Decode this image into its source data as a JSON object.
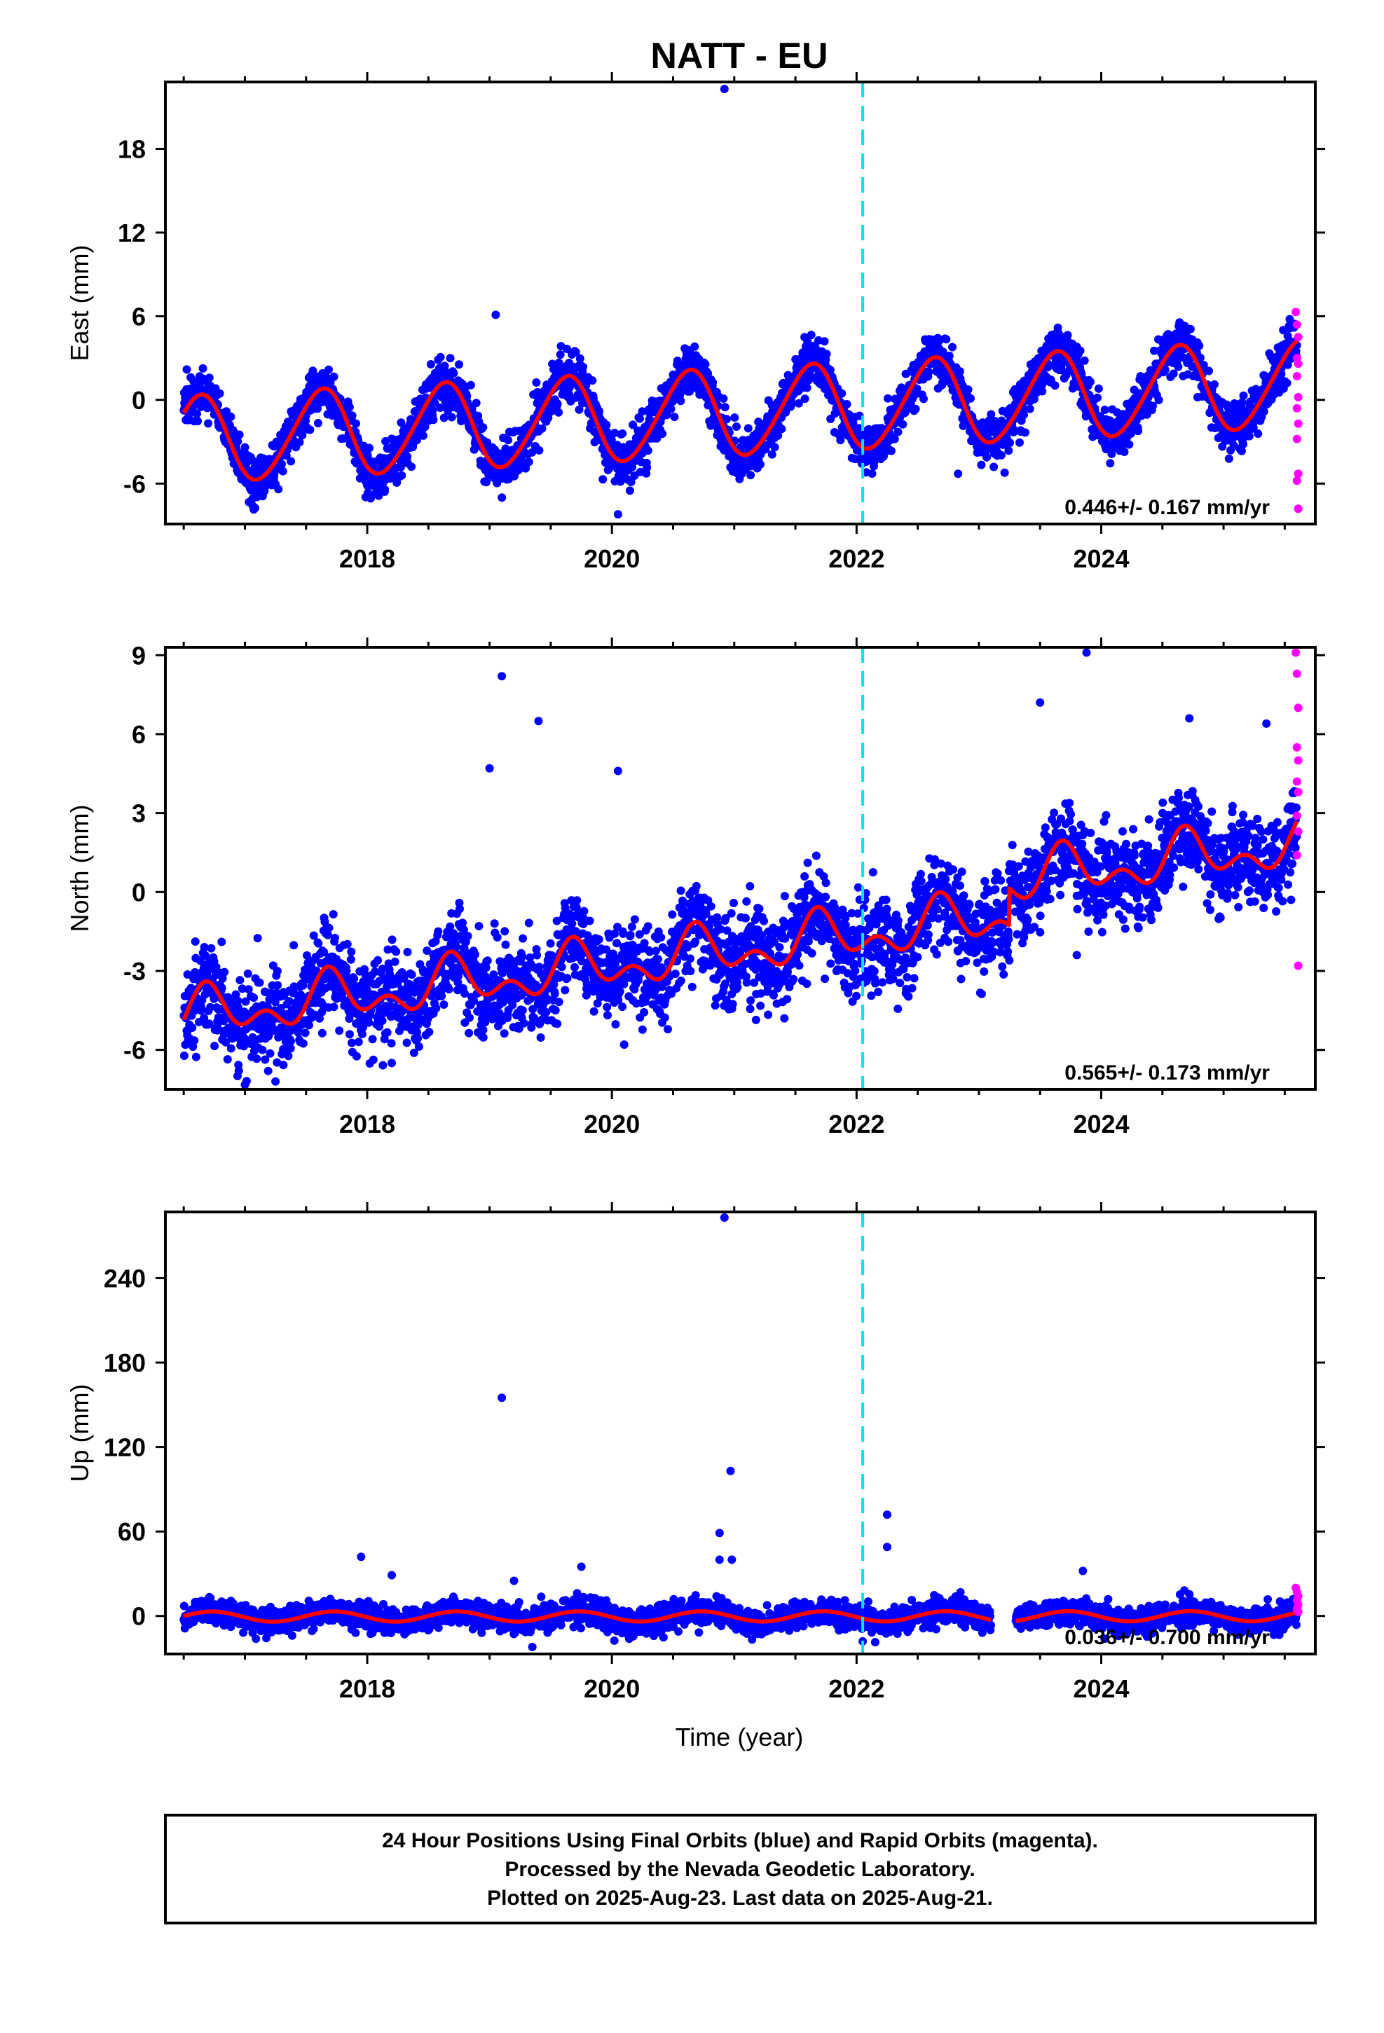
{
  "title": "NATT - EU",
  "x_axis_label": "Time (year)",
  "caption": [
    "24 Hour Positions Using Final Orbits (blue) and Rapid Orbits (magenta).",
    "Processed by the Nevada Geodetic Laboratory.",
    "Plotted on 2025-Aug-23. Last data on 2025-Aug-21."
  ],
  "colors": {
    "final": "#0000ff",
    "rapid": "#ff00ff",
    "model": "#ff0000",
    "event": "#00e5ee",
    "frame": "#000000"
  },
  "chart_data": [
    {
      "type": "scatter",
      "component": "east",
      "ylabel": "East (mm)",
      "xlim": [
        2016.35,
        2025.75
      ],
      "ylim": [
        -8.9,
        22.8
      ],
      "x_ticks": [
        2018,
        2020,
        2022,
        2024
      ],
      "y_ticks": [
        -6,
        0,
        6,
        12,
        18
      ],
      "rate_label": "0.446+/- 0.167 mm/yr",
      "event_line_year": 2022.05,
      "data_range": [
        2016.5,
        2025.6
      ],
      "model": {
        "offset": -0.9,
        "trend": 0.446,
        "annual_amp": 3.1,
        "annual_phase": 2017.37,
        "semiannual_amp": 0.3,
        "semiannual_phase": 2016.6
      },
      "scatter_sigma": 0.9,
      "outliers": [
        {
          "x": 2020.92,
          "y": 22.3
        },
        {
          "x": 2020.05,
          "y": -8.2
        },
        {
          "x": 2019.05,
          "y": 6.1
        },
        {
          "x": 2022.83,
          "y": -5.3
        }
      ],
      "rapid_points": [
        {
          "x": 2025.59,
          "y": 6.3
        },
        {
          "x": 2025.6,
          "y": 5.4
        },
        {
          "x": 2025.61,
          "y": 4.5
        },
        {
          "x": 2025.6,
          "y": 3.0
        },
        {
          "x": 2025.61,
          "y": 2.6
        },
        {
          "x": 2025.6,
          "y": 1.7
        },
        {
          "x": 2025.61,
          "y": 0.2
        },
        {
          "x": 2025.6,
          "y": -0.6
        },
        {
          "x": 2025.61,
          "y": -1.7
        },
        {
          "x": 2025.6,
          "y": -2.8
        },
        {
          "x": 2025.61,
          "y": -5.3
        },
        {
          "x": 2025.6,
          "y": -5.8
        },
        {
          "x": 2025.61,
          "y": -7.8
        }
      ]
    },
    {
      "type": "scatter",
      "component": "north",
      "ylabel": "North (mm)",
      "xlim": [
        2016.35,
        2025.75
      ],
      "ylim": [
        -7.5,
        9.3
      ],
      "x_ticks": [
        2018,
        2020,
        2022,
        2024
      ],
      "y_ticks": [
        -6,
        -3,
        0,
        3,
        6,
        9
      ],
      "rate_label": "0.565+/- 0.173 mm/yr",
      "event_line_year": 2022.05,
      "data_range": [
        2016.5,
        2025.6
      ],
      "model": {
        "offset": -2.2,
        "trend": 0.565,
        "annual_amp": 0.7,
        "annual_phase": 2016.45,
        "semiannual_amp": 0.55,
        "semiannual_phase": 2016.55
      },
      "step": {
        "x": 2023.25,
        "dy": 1.4
      },
      "scatter_sigma": 0.85,
      "outliers": [
        {
          "x": 2019.1,
          "y": 8.2
        },
        {
          "x": 2019.4,
          "y": 6.5
        },
        {
          "x": 2019.0,
          "y": 4.7
        },
        {
          "x": 2020.05,
          "y": 4.6
        },
        {
          "x": 2023.88,
          "y": 9.1
        },
        {
          "x": 2023.5,
          "y": 7.2
        },
        {
          "x": 2024.72,
          "y": 6.6
        },
        {
          "x": 2025.35,
          "y": 6.4
        },
        {
          "x": 2016.55,
          "y": -4.6
        },
        {
          "x": 2017.25,
          "y": -7.2
        },
        {
          "x": 2018.2,
          "y": -6.5
        },
        {
          "x": 2020.1,
          "y": -5.8
        },
        {
          "x": 2023.8,
          "y": -2.4
        },
        {
          "x": 2022.85,
          "y": -2.7
        }
      ],
      "rapid_points": [
        {
          "x": 2025.59,
          "y": 9.1
        },
        {
          "x": 2025.6,
          "y": 8.3
        },
        {
          "x": 2025.61,
          "y": 7.0
        },
        {
          "x": 2025.6,
          "y": 5.5
        },
        {
          "x": 2025.61,
          "y": 5.0
        },
        {
          "x": 2025.6,
          "y": 4.2
        },
        {
          "x": 2025.61,
          "y": 3.8
        },
        {
          "x": 2025.6,
          "y": 2.9
        },
        {
          "x": 2025.61,
          "y": 2.3
        },
        {
          "x": 2025.6,
          "y": 1.4
        },
        {
          "x": 2025.61,
          "y": -2.8
        }
      ]
    },
    {
      "type": "scatter",
      "component": "up",
      "ylabel": "Up (mm)",
      "xlim": [
        2016.35,
        2025.75
      ],
      "ylim": [
        -27,
        287
      ],
      "x_ticks": [
        2018,
        2020,
        2022,
        2024
      ],
      "y_ticks": [
        0,
        60,
        120,
        180,
        240
      ],
      "rate_label": "0.036+/- 0.700 mm/yr",
      "event_line_year": 2022.05,
      "data_range": [
        2016.5,
        2025.6
      ],
      "gaps": [
        [
          2023.1,
          2023.3
        ]
      ],
      "model": {
        "offset": -0.3,
        "trend": 0.036,
        "annual_amp": 3.6,
        "annual_phase": 2016.48,
        "semiannual_amp": 0.0,
        "semiannual_phase": 2016.5
      },
      "scatter_sigma": 4.5,
      "outliers": [
        {
          "x": 2020.92,
          "y": 283
        },
        {
          "x": 2019.1,
          "y": 155
        },
        {
          "x": 2020.97,
          "y": 103
        },
        {
          "x": 2022.25,
          "y": 72
        },
        {
          "x": 2020.88,
          "y": 59
        },
        {
          "x": 2022.25,
          "y": 49
        },
        {
          "x": 2017.95,
          "y": 42
        },
        {
          "x": 2020.88,
          "y": 40
        },
        {
          "x": 2020.98,
          "y": 40
        },
        {
          "x": 2019.75,
          "y": 35
        },
        {
          "x": 2023.85,
          "y": 32
        },
        {
          "x": 2018.2,
          "y": 29
        },
        {
          "x": 2019.2,
          "y": 25
        },
        {
          "x": 2019.35,
          "y": -22
        },
        {
          "x": 2022.05,
          "y": -18
        }
      ],
      "rapid_points": [
        {
          "x": 2025.59,
          "y": 20
        },
        {
          "x": 2025.6,
          "y": 17
        },
        {
          "x": 2025.61,
          "y": 14
        },
        {
          "x": 2025.6,
          "y": 11
        },
        {
          "x": 2025.61,
          "y": 8
        },
        {
          "x": 2025.6,
          "y": 5
        },
        {
          "x": 2025.61,
          "y": 3
        }
      ]
    }
  ]
}
